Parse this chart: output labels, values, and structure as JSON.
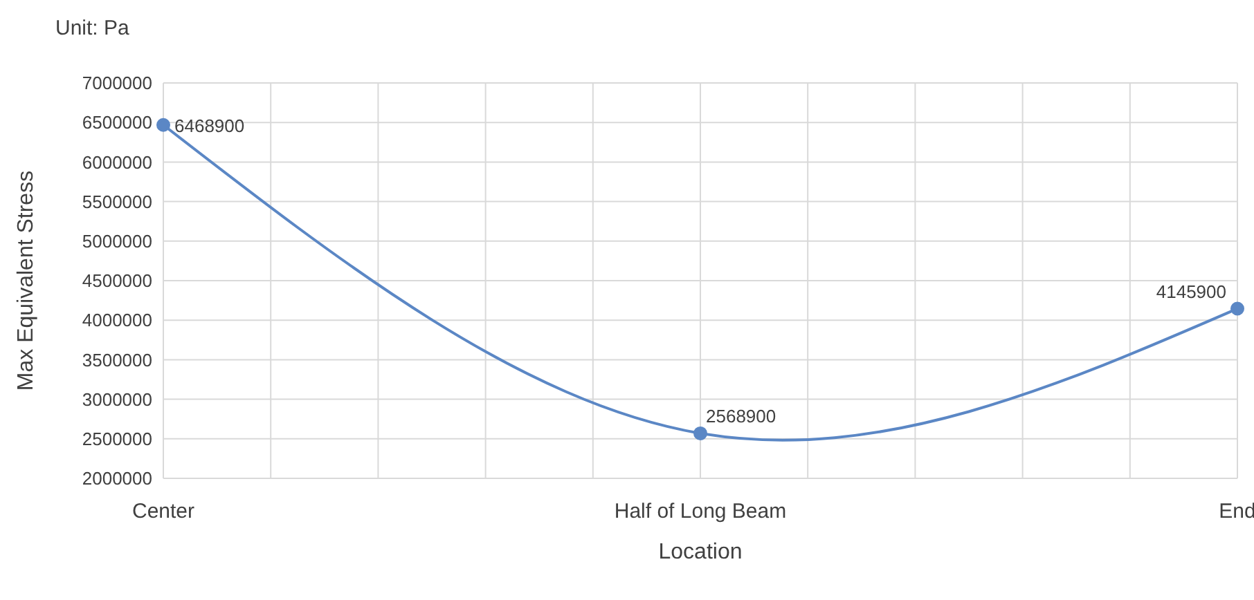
{
  "chart_data": {
    "type": "line",
    "title": "Unit: Pa",
    "xlabel": "Location",
    "ylabel": "Max Equivalent Stress",
    "categories": [
      "Center",
      null,
      null,
      null,
      null,
      "Half of Long Beam",
      null,
      null,
      null,
      null,
      "End"
    ],
    "series": [
      {
        "color": "#5b87c5",
        "values": [
          6468900,
          null,
          null,
          null,
          null,
          2568900,
          null,
          null,
          null,
          null,
          4145900
        ]
      }
    ],
    "ylim": [
      2000000,
      7000000
    ],
    "yticks": [
      2000000,
      2500000,
      3000000,
      3500000,
      4000000,
      4500000,
      5000000,
      5500000,
      6000000,
      6500000,
      7000000
    ],
    "grid": true,
    "marker": "circle",
    "data_labels": true,
    "legend": false
  }
}
